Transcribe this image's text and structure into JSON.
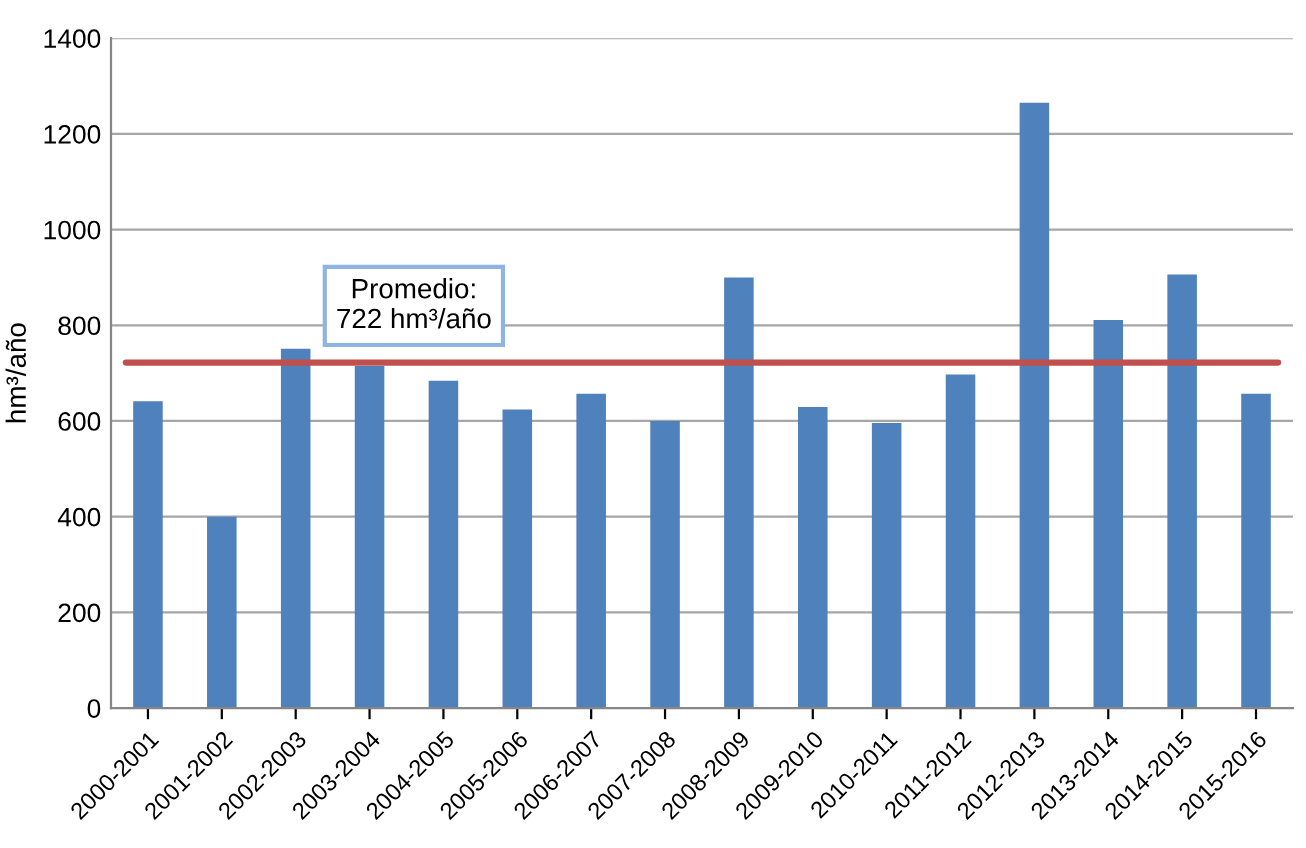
{
  "chart_data": {
    "type": "bar",
    "ylabel": "hm³/año",
    "categories": [
      "2000-2001",
      "2001-2002",
      "2002-2003",
      "2003-2004",
      "2004-2005",
      "2005-2006",
      "2006-2007",
      "2007-2008",
      "2008-2009",
      "2009-2010",
      "2010-2011",
      "2011-2012",
      "2012-2013",
      "2013-2014",
      "2014-2015",
      "2015-2016"
    ],
    "values": [
      641,
      400,
      751,
      715,
      684,
      624,
      657,
      600,
      900,
      629,
      596,
      697,
      1265,
      811,
      906,
      657
    ],
    "color": "#4f81bd",
    "ylim": [
      0,
      1400
    ],
    "yticks": [
      0,
      200,
      400,
      600,
      800,
      1000,
      1200,
      1400
    ],
    "grid": "y",
    "legend": false,
    "ref_lines": [
      {
        "axis": "y",
        "value": 722,
        "label": "Promedio:\n722 hm³/año",
        "color": "#c0504d",
        "line_style": "solid"
      }
    ]
  }
}
